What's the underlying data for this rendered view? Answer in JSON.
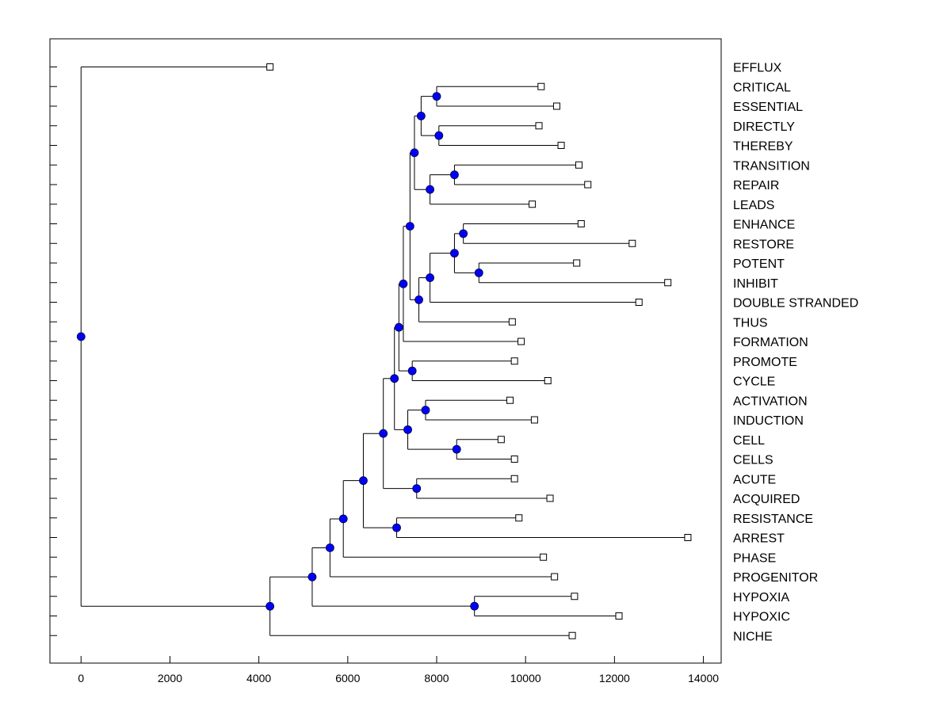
{
  "chart_data": {
    "type": "dendrogram",
    "orientation": "horizontal",
    "title": "",
    "xlabel": "",
    "ylabel": "",
    "xlim": [
      -700,
      14400
    ],
    "xticks": [
      0,
      2000,
      4000,
      6000,
      8000,
      10000,
      12000,
      14000
    ],
    "xtick_labels": [
      "0",
      "2000",
      "4000",
      "6000",
      "8000",
      "10000",
      "12000",
      "14000"
    ],
    "colors": {
      "node": "#0000ff",
      "line": "#000000",
      "leaf": "#ffffff"
    },
    "leaves": [
      {
        "id": "EFFLUX",
        "label": "EFFLUX",
        "value": 4250
      },
      {
        "id": "CRITICAL",
        "label": "CRITICAL",
        "value": 10350
      },
      {
        "id": "ESSENTIAL",
        "label": "ESSENTIAL",
        "value": 10700
      },
      {
        "id": "DIRECTLY",
        "label": "DIRECTLY",
        "value": 10300
      },
      {
        "id": "THEREBY",
        "label": "THEREBY",
        "value": 10800
      },
      {
        "id": "TRANSITION",
        "label": "TRANSITION",
        "value": 11200
      },
      {
        "id": "REPAIR",
        "label": "REPAIR",
        "value": 11400
      },
      {
        "id": "LEADS",
        "label": "LEADS",
        "value": 10150
      },
      {
        "id": "ENHANCE",
        "label": "ENHANCE",
        "value": 11250
      },
      {
        "id": "RESTORE",
        "label": "RESTORE",
        "value": 12400
      },
      {
        "id": "POTENT",
        "label": "POTENT",
        "value": 11150
      },
      {
        "id": "INHIBIT",
        "label": "INHIBIT",
        "value": 13200
      },
      {
        "id": "DOUBLE_STRANDED",
        "label": "DOUBLE STRANDED",
        "value": 12550
      },
      {
        "id": "THUS",
        "label": "THUS",
        "value": 9700
      },
      {
        "id": "FORMATION",
        "label": "FORMATION",
        "value": 9900
      },
      {
        "id": "PROMOTE",
        "label": "PROMOTE",
        "value": 9750
      },
      {
        "id": "CYCLE",
        "label": "CYCLE",
        "value": 10500
      },
      {
        "id": "ACTIVATION",
        "label": "ACTIVATION",
        "value": 9650
      },
      {
        "id": "INDUCTION",
        "label": "INDUCTION",
        "value": 10200
      },
      {
        "id": "CELL",
        "label": "CELL",
        "value": 9450
      },
      {
        "id": "CELLS",
        "label": "CELLS",
        "value": 9750
      },
      {
        "id": "ACUTE",
        "label": "ACUTE",
        "value": 9750
      },
      {
        "id": "ACQUIRED",
        "label": "ACQUIRED",
        "value": 10550
      },
      {
        "id": "RESISTANCE",
        "label": "RESISTANCE",
        "value": 9850
      },
      {
        "id": "ARREST",
        "label": "ARREST",
        "value": 13650
      },
      {
        "id": "PHASE",
        "label": "PHASE",
        "value": 10400
      },
      {
        "id": "PROGENITOR",
        "label": "PROGENITOR",
        "value": 10650
      },
      {
        "id": "HYPOXIA",
        "label": "HYPOXIA",
        "value": 11100
      },
      {
        "id": "HYPOXIC",
        "label": "HYPOXIC",
        "value": 12100
      },
      {
        "id": "NICHE",
        "label": "NICHE",
        "value": 11050
      }
    ],
    "nodes": [
      {
        "id": "n1",
        "value": 8000,
        "children": [
          "CRITICAL",
          "ESSENTIAL"
        ]
      },
      {
        "id": "n2",
        "value": 8050,
        "children": [
          "DIRECTLY",
          "THEREBY"
        ]
      },
      {
        "id": "n3",
        "value": 7650,
        "children": [
          "n1",
          "n2"
        ]
      },
      {
        "id": "n4",
        "value": 8400,
        "children": [
          "TRANSITION",
          "REPAIR"
        ]
      },
      {
        "id": "n5",
        "value": 7850,
        "children": [
          "n4",
          "LEADS"
        ]
      },
      {
        "id": "n6",
        "value": 7500,
        "children": [
          "n3",
          "n5"
        ]
      },
      {
        "id": "n7",
        "value": 8600,
        "children": [
          "ENHANCE",
          "RESTORE"
        ]
      },
      {
        "id": "n8",
        "value": 8950,
        "children": [
          "POTENT",
          "INHIBIT"
        ]
      },
      {
        "id": "n9",
        "value": 8400,
        "children": [
          "n7",
          "n8"
        ]
      },
      {
        "id": "n10",
        "value": 7850,
        "children": [
          "n9",
          "DOUBLE_STRANDED"
        ]
      },
      {
        "id": "n11",
        "value": 7600,
        "children": [
          "n10",
          "THUS"
        ]
      },
      {
        "id": "n12",
        "value": 7400,
        "children": [
          "n6",
          "n11"
        ]
      },
      {
        "id": "n13",
        "value": 7250,
        "children": [
          "n12",
          "FORMATION"
        ]
      },
      {
        "id": "n14",
        "value": 7450,
        "children": [
          "PROMOTE",
          "CYCLE"
        ]
      },
      {
        "id": "n15",
        "value": 7150,
        "children": [
          "n13",
          "n14"
        ]
      },
      {
        "id": "n16",
        "value": 7750,
        "children": [
          "ACTIVATION",
          "INDUCTION"
        ]
      },
      {
        "id": "n17",
        "value": 8450,
        "children": [
          "CELL",
          "CELLS"
        ]
      },
      {
        "id": "n18",
        "value": 7350,
        "children": [
          "n16",
          "n17"
        ]
      },
      {
        "id": "n19",
        "value": 7050,
        "children": [
          "n15",
          "n18"
        ]
      },
      {
        "id": "n20",
        "value": 7550,
        "children": [
          "ACUTE",
          "ACQUIRED"
        ]
      },
      {
        "id": "n21",
        "value": 6800,
        "children": [
          "n19",
          "n20"
        ]
      },
      {
        "id": "n22",
        "value": 7100,
        "children": [
          "RESISTANCE",
          "ARREST"
        ]
      },
      {
        "id": "n23",
        "value": 6350,
        "children": [
          "n21",
          "n22"
        ]
      },
      {
        "id": "n24",
        "value": 5900,
        "children": [
          "n23",
          "PHASE"
        ]
      },
      {
        "id": "n25",
        "value": 5600,
        "children": [
          "n24",
          "PROGENITOR"
        ]
      },
      {
        "id": "n26",
        "value": 8850,
        "children": [
          "HYPOXIA",
          "HYPOXIC"
        ]
      },
      {
        "id": "n27",
        "value": 5200,
        "children": [
          "n25",
          "n26"
        ]
      },
      {
        "id": "n28",
        "value": 4250,
        "children": [
          "n27",
          "NICHE"
        ]
      },
      {
        "id": "n29",
        "value": 0,
        "children": [
          "EFFLUX",
          "n28"
        ]
      }
    ]
  }
}
